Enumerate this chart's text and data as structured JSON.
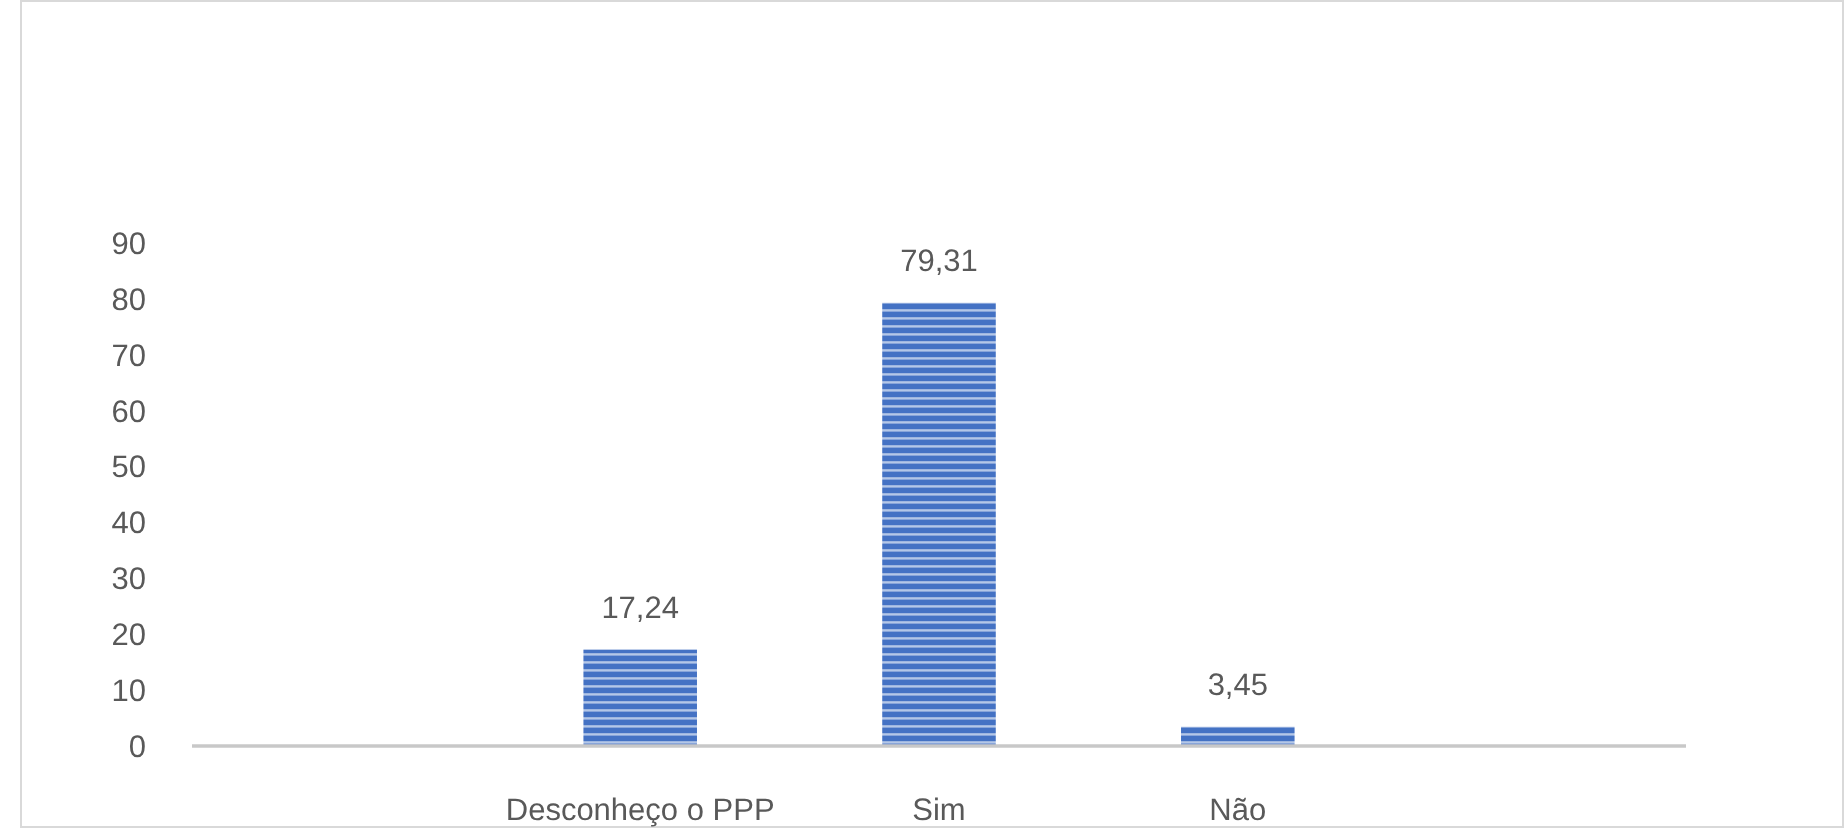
{
  "chart_data": {
    "type": "bar",
    "categories": [
      null,
      "Desconheço o PPP",
      "Sim",
      "Não",
      null
    ],
    "values": [
      null,
      17.24,
      79.31,
      3.45,
      null
    ],
    "value_labels": [
      null,
      "17,24",
      "79,31",
      "3,45",
      null
    ],
    "color": "#4472c4",
    "ylim": [
      0,
      90
    ],
    "yticks": [
      0,
      10,
      20,
      30,
      40,
      50,
      60,
      70,
      80,
      90
    ]
  }
}
